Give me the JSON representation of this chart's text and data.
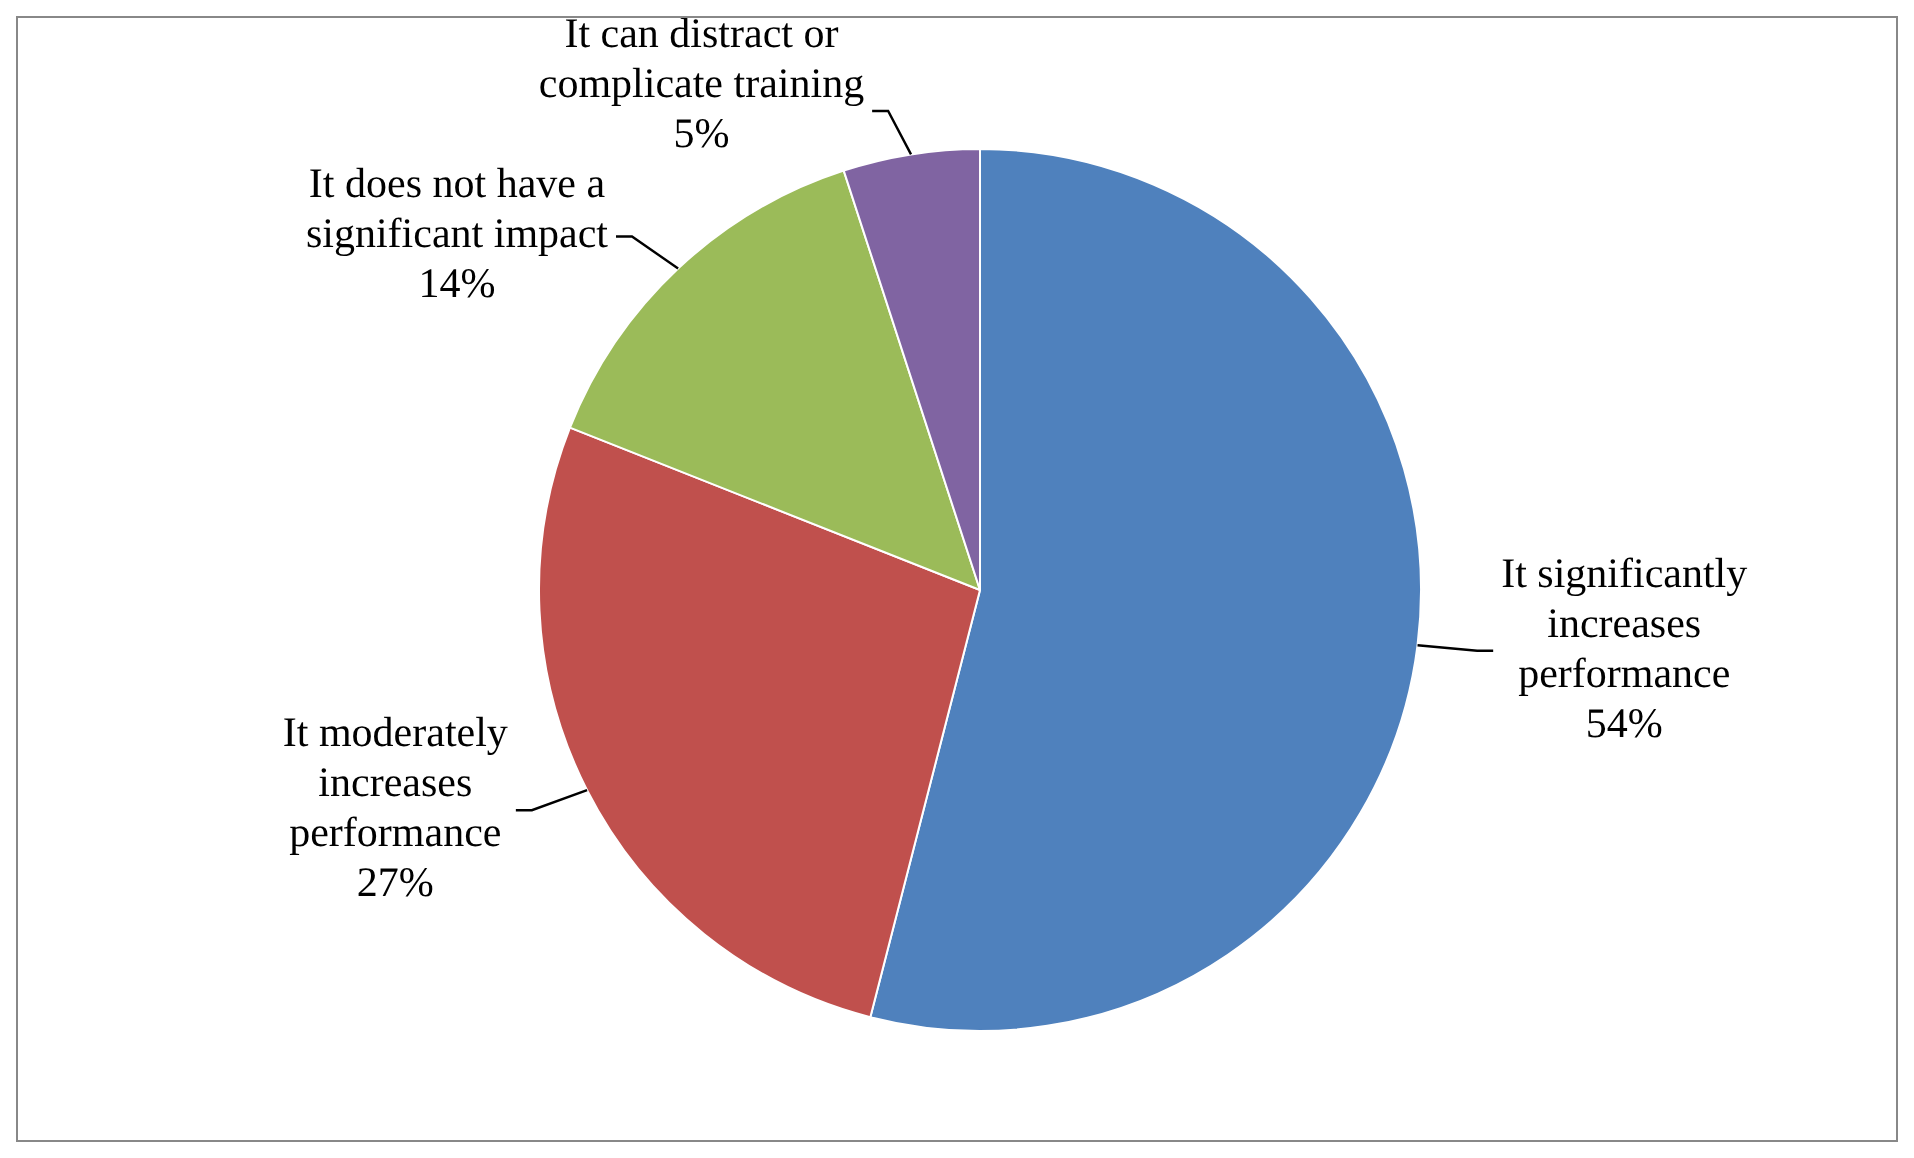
{
  "chart_data": {
    "type": "pie",
    "categories": [
      "It significantly increases performance",
      "It moderately increases performance",
      "It does not have a significant impact",
      "It can distract or complicate training"
    ],
    "values": [
      54,
      27,
      14,
      5
    ],
    "colors": [
      "#4f81bd",
      "#c0504d",
      "#9bbb59",
      "#8064a2"
    ],
    "value_labels": [
      "54%",
      "27%",
      "14%",
      "5%"
    ],
    "legend": false
  }
}
